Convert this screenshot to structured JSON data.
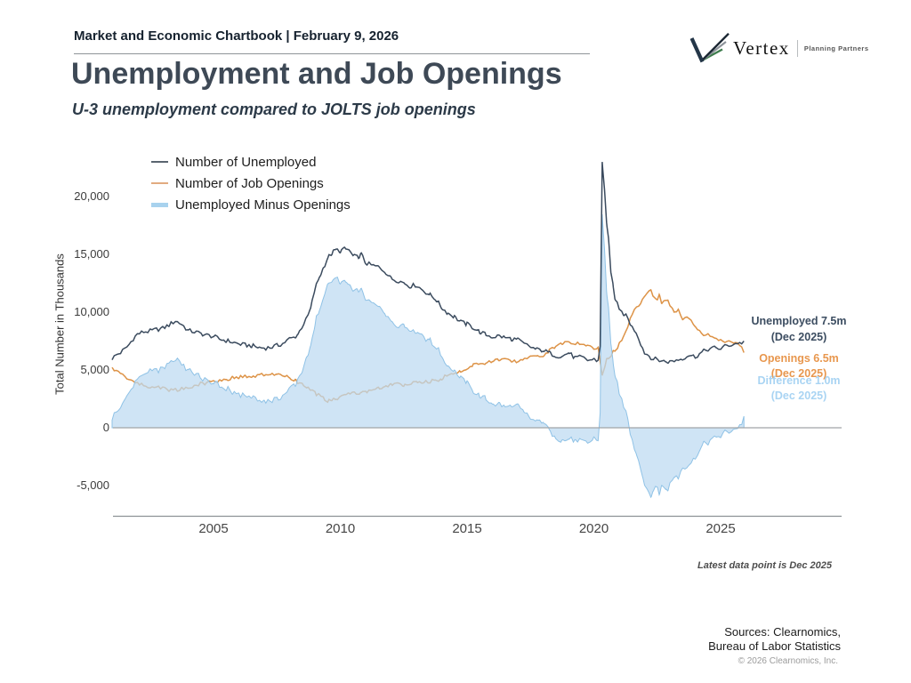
{
  "header": {
    "report_title": "Market and Economic Chartbook | February 9, 2026"
  },
  "logo": {
    "brand": "Vertex",
    "tagline": "Planning Partners"
  },
  "title": "Unemployment and Job Openings",
  "subtitle": "U-3 unemployment compared to JOLTS job openings",
  "footer": {
    "sources_line1": "Sources: Clearnomics,",
    "sources_line2": "Bureau of Labor Statistics",
    "copyright": "© 2026 Clearnomics, Inc."
  },
  "chart_data": {
    "type": "line",
    "title": "Unemployment and Job Openings",
    "subtitle": "U-3 unemployment compared to JOLTS job openings",
    "ylabel": "Total Number in Thousands",
    "xlabel": "",
    "unit": "thousands",
    "x_range": [
      2001.0,
      2025.92
    ],
    "ylim": [
      -7000,
      24000
    ],
    "samples": 300,
    "grid": false,
    "legend_position": "top-left",
    "yticks": [
      {
        "v": 20000,
        "label": "20,000"
      },
      {
        "v": 15000,
        "label": "15,000"
      },
      {
        "v": 10000,
        "label": "10,000"
      },
      {
        "v": 5000,
        "label": "5,000"
      },
      {
        "v": 0,
        "label": "0"
      },
      {
        "v": -5000,
        "label": "-5,000"
      }
    ],
    "xticks": [
      2005,
      2010,
      2015,
      2020,
      2025
    ],
    "series": [
      {
        "name": "Number of Unemployed",
        "type": "line",
        "color": "#3b4b5e",
        "legend_color": "#5a6570",
        "points": [
          [
            2001.0,
            6000
          ],
          [
            2001.17,
            6300
          ],
          [
            2001.33,
            6500
          ],
          [
            2001.5,
            6800
          ],
          [
            2001.67,
            7200
          ],
          [
            2001.83,
            7700
          ],
          [
            2002.0,
            8100
          ],
          [
            2002.25,
            8300
          ],
          [
            2002.5,
            8350
          ],
          [
            2002.75,
            8500
          ],
          [
            2003.0,
            8600
          ],
          [
            2003.25,
            8900
          ],
          [
            2003.5,
            9250
          ],
          [
            2003.75,
            8950
          ],
          [
            2004.0,
            8400
          ],
          [
            2004.25,
            8300
          ],
          [
            2004.5,
            8150
          ],
          [
            2004.75,
            8000
          ],
          [
            2005.0,
            7900
          ],
          [
            2005.25,
            7650
          ],
          [
            2005.5,
            7550
          ],
          [
            2005.75,
            7400
          ],
          [
            2006.0,
            7250
          ],
          [
            2006.25,
            7150
          ],
          [
            2006.5,
            7100
          ],
          [
            2006.75,
            6950
          ],
          [
            2007.0,
            6900
          ],
          [
            2007.25,
            6950
          ],
          [
            2007.5,
            7100
          ],
          [
            2007.75,
            7300
          ],
          [
            2008.0,
            7700
          ],
          [
            2008.17,
            7800
          ],
          [
            2008.33,
            8100
          ],
          [
            2008.5,
            8800
          ],
          [
            2008.67,
            9400
          ],
          [
            2008.83,
            10300
          ],
          [
            2009.0,
            12000
          ],
          [
            2009.17,
            13000
          ],
          [
            2009.33,
            13800
          ],
          [
            2009.5,
            14700
          ],
          [
            2009.67,
            15100
          ],
          [
            2009.83,
            15400
          ],
          [
            2010.0,
            15300
          ],
          [
            2010.17,
            15450
          ],
          [
            2010.33,
            15400
          ],
          [
            2010.5,
            14850
          ],
          [
            2010.67,
            14750
          ],
          [
            2010.83,
            15000
          ],
          [
            2011.0,
            14250
          ],
          [
            2011.25,
            14050
          ],
          [
            2011.5,
            13900
          ],
          [
            2011.75,
            13550
          ],
          [
            2012.0,
            12900
          ],
          [
            2012.25,
            12750
          ],
          [
            2012.5,
            12550
          ],
          [
            2012.75,
            12250
          ],
          [
            2013.0,
            12350
          ],
          [
            2013.25,
            11900
          ],
          [
            2013.5,
            11550
          ],
          [
            2013.75,
            11150
          ],
          [
            2014.0,
            10400
          ],
          [
            2014.25,
            9900
          ],
          [
            2014.5,
            9600
          ],
          [
            2014.75,
            9150
          ],
          [
            2015.0,
            8950
          ],
          [
            2015.25,
            8650
          ],
          [
            2015.5,
            8300
          ],
          [
            2015.75,
            8050
          ],
          [
            2016.0,
            7850
          ],
          [
            2016.25,
            7950
          ],
          [
            2016.5,
            7800
          ],
          [
            2016.75,
            7700
          ],
          [
            2017.0,
            7600
          ],
          [
            2017.25,
            7250
          ],
          [
            2017.5,
            7000
          ],
          [
            2017.75,
            6750
          ],
          [
            2018.0,
            6700
          ],
          [
            2018.25,
            6450
          ],
          [
            2018.5,
            6250
          ],
          [
            2018.75,
            6150
          ],
          [
            2019.0,
            6500
          ],
          [
            2019.25,
            6050
          ],
          [
            2019.5,
            6100
          ],
          [
            2019.75,
            5850
          ],
          [
            2020.0,
            5900
          ],
          [
            2020.17,
            5800
          ],
          [
            2020.25,
            7100
          ],
          [
            2020.33,
            23100
          ],
          [
            2020.42,
            20500
          ],
          [
            2020.5,
            17750
          ],
          [
            2020.58,
            16300
          ],
          [
            2020.67,
            13550
          ],
          [
            2020.75,
            12600
          ],
          [
            2020.83,
            11100
          ],
          [
            2020.92,
            10700
          ],
          [
            2021.0,
            10100
          ],
          [
            2021.17,
            9900
          ],
          [
            2021.33,
            9500
          ],
          [
            2021.5,
            8700
          ],
          [
            2021.67,
            8300
          ],
          [
            2021.83,
            7400
          ],
          [
            2021.92,
            6900
          ],
          [
            2022.0,
            6500
          ],
          [
            2022.17,
            6250
          ],
          [
            2022.33,
            5950
          ],
          [
            2022.5,
            5900
          ],
          [
            2022.75,
            5750
          ],
          [
            2023.0,
            5700
          ],
          [
            2023.25,
            5850
          ],
          [
            2023.5,
            6000
          ],
          [
            2023.75,
            6300
          ],
          [
            2024.0,
            6150
          ],
          [
            2024.25,
            6500
          ],
          [
            2024.5,
            6800
          ],
          [
            2024.75,
            6900
          ],
          [
            2025.0,
            6850
          ],
          [
            2025.17,
            7050
          ],
          [
            2025.33,
            7150
          ],
          [
            2025.5,
            7200
          ],
          [
            2025.67,
            7350
          ],
          [
            2025.83,
            7300
          ],
          [
            2025.92,
            7500
          ]
        ]
      },
      {
        "name": "Number of Job Openings",
        "type": "line",
        "color": "#dd9347",
        "legend_color": "#e2ab80",
        "points": [
          [
            2001.0,
            5150
          ],
          [
            2001.17,
            4900
          ],
          [
            2001.33,
            4700
          ],
          [
            2001.5,
            4450
          ],
          [
            2001.75,
            4100
          ],
          [
            2002.0,
            3850
          ],
          [
            2002.25,
            3650
          ],
          [
            2002.5,
            3500
          ],
          [
            2002.75,
            3550
          ],
          [
            2003.0,
            3450
          ],
          [
            2003.25,
            3300
          ],
          [
            2003.5,
            3250
          ],
          [
            2003.75,
            3350
          ],
          [
            2004.0,
            3500
          ],
          [
            2004.25,
            3650
          ],
          [
            2004.5,
            3800
          ],
          [
            2004.75,
            3900
          ],
          [
            2005.0,
            4000
          ],
          [
            2005.25,
            4100
          ],
          [
            2005.5,
            4200
          ],
          [
            2005.75,
            4300
          ],
          [
            2006.0,
            4400
          ],
          [
            2006.25,
            4450
          ],
          [
            2006.5,
            4400
          ],
          [
            2006.75,
            4500
          ],
          [
            2007.0,
            4600
          ],
          [
            2007.25,
            4650
          ],
          [
            2007.5,
            4600
          ],
          [
            2007.75,
            4500
          ],
          [
            2008.0,
            4300
          ],
          [
            2008.25,
            4050
          ],
          [
            2008.5,
            3750
          ],
          [
            2008.75,
            3350
          ],
          [
            2009.0,
            3000
          ],
          [
            2009.25,
            2650
          ],
          [
            2009.5,
            2300
          ],
          [
            2009.75,
            2400
          ],
          [
            2010.0,
            2700
          ],
          [
            2010.25,
            2900
          ],
          [
            2010.5,
            3000
          ],
          [
            2010.75,
            3000
          ],
          [
            2011.0,
            3100
          ],
          [
            2011.25,
            3250
          ],
          [
            2011.5,
            3400
          ],
          [
            2011.75,
            3500
          ],
          [
            2012.0,
            3700
          ],
          [
            2012.25,
            3800
          ],
          [
            2012.5,
            3700
          ],
          [
            2012.75,
            3800
          ],
          [
            2013.0,
            3900
          ],
          [
            2013.25,
            3950
          ],
          [
            2013.5,
            4000
          ],
          [
            2013.75,
            4100
          ],
          [
            2014.0,
            4250
          ],
          [
            2014.25,
            4600
          ],
          [
            2014.5,
            4800
          ],
          [
            2014.75,
            4900
          ],
          [
            2015.0,
            5100
          ],
          [
            2015.25,
            5400
          ],
          [
            2015.5,
            5500
          ],
          [
            2015.75,
            5600
          ],
          [
            2016.0,
            5800
          ],
          [
            2016.25,
            5900
          ],
          [
            2016.5,
            5900
          ],
          [
            2016.75,
            5700
          ],
          [
            2017.0,
            5800
          ],
          [
            2017.25,
            6000
          ],
          [
            2017.5,
            6200
          ],
          [
            2017.75,
            6100
          ],
          [
            2018.0,
            6300
          ],
          [
            2018.25,
            6700
          ],
          [
            2018.5,
            7000
          ],
          [
            2018.75,
            7300
          ],
          [
            2019.0,
            7500
          ],
          [
            2019.25,
            7300
          ],
          [
            2019.5,
            7200
          ],
          [
            2019.75,
            7000
          ],
          [
            2020.0,
            6900
          ],
          [
            2020.17,
            7000
          ],
          [
            2020.33,
            4600
          ],
          [
            2020.5,
            5800
          ],
          [
            2020.75,
            6500
          ],
          [
            2021.0,
            7200
          ],
          [
            2021.17,
            7900
          ],
          [
            2021.33,
            8700
          ],
          [
            2021.5,
            9800
          ],
          [
            2021.67,
            10300
          ],
          [
            2021.83,
            10800
          ],
          [
            2022.0,
            11300
          ],
          [
            2022.17,
            11700
          ],
          [
            2022.25,
            12000
          ],
          [
            2022.33,
            11500
          ],
          [
            2022.42,
            11300
          ],
          [
            2022.5,
            11100
          ],
          [
            2022.58,
            11400
          ],
          [
            2022.67,
            10900
          ],
          [
            2022.75,
            10800
          ],
          [
            2022.83,
            11000
          ],
          [
            2022.92,
            10900
          ],
          [
            2023.0,
            10500
          ],
          [
            2023.17,
            10000
          ],
          [
            2023.33,
            10200
          ],
          [
            2023.5,
            9500
          ],
          [
            2023.67,
            9600
          ],
          [
            2023.83,
            9300
          ],
          [
            2024.0,
            8800
          ],
          [
            2024.17,
            8400
          ],
          [
            2024.33,
            8100
          ],
          [
            2024.5,
            8000
          ],
          [
            2024.67,
            7900
          ],
          [
            2024.83,
            7700
          ],
          [
            2025.0,
            7600
          ],
          [
            2025.17,
            7400
          ],
          [
            2025.33,
            7500
          ],
          [
            2025.5,
            7350
          ],
          [
            2025.67,
            7200
          ],
          [
            2025.83,
            7000
          ],
          [
            2025.92,
            6500
          ]
        ]
      },
      {
        "name": "Unemployed Minus Openings",
        "type": "area",
        "color": "#bcd9f1",
        "edge_color": "#8fc2e6",
        "legend_color": "#a8d2ee",
        "derived": "Number of Unemployed minus Number of Job Openings"
      }
    ],
    "annotations": [
      {
        "text": "Unemployed 7.5m",
        "subtext": "(Dec 2025)",
        "color": "#3c4d61"
      },
      {
        "text": "Openings 6.5m",
        "subtext": "(Dec 2025)",
        "color": "#e8974e"
      },
      {
        "text": "Difference 1.0m",
        "subtext": "(Dec 2025)",
        "color": "#a9d4f3"
      }
    ],
    "footnote": "Latest data point is Dec 2025"
  }
}
